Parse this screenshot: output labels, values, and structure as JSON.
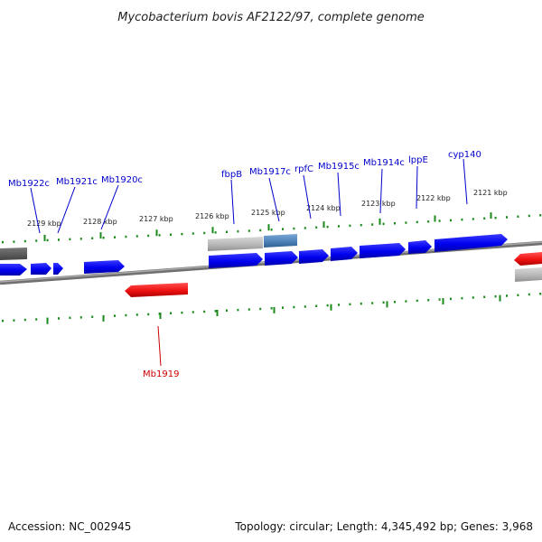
{
  "title": "Mycobacterium bovis AF2122/97, complete genome",
  "footer": {
    "accession": "Accession: NC_002945",
    "summary": "Topology: circular; Length: 4,345,492 bp; Genes: 3,968"
  },
  "colors": {
    "tick": "#1a8a1a",
    "backbone": "#808080",
    "forward_gene": "#0000ee",
    "reverse_gene": "#ee1111",
    "forward_label": "#0000cc",
    "reverse_label": "#cc0000",
    "rna_feature": "#b4b4b4",
    "blue_feature": "#4a7fb5",
    "dark_feature": "#555555"
  },
  "kbp_ticks": [
    "2129 kbp",
    "2128 kbp",
    "2127 kbp",
    "2126 kbp",
    "2125 kbp",
    "2124 kbp",
    "2123 kbp",
    "2122 kbp",
    "2121 kbp"
  ],
  "forward_gene_labels": [
    "Mb1922c",
    "Mb1921c",
    "Mb1920c",
    "fbpB",
    "Mb1917c",
    "rpfC",
    "Mb1915c",
    "Mb1914c",
    "lppE",
    "cyp140"
  ],
  "reverse_gene_labels": [
    "Mb1919"
  ]
}
